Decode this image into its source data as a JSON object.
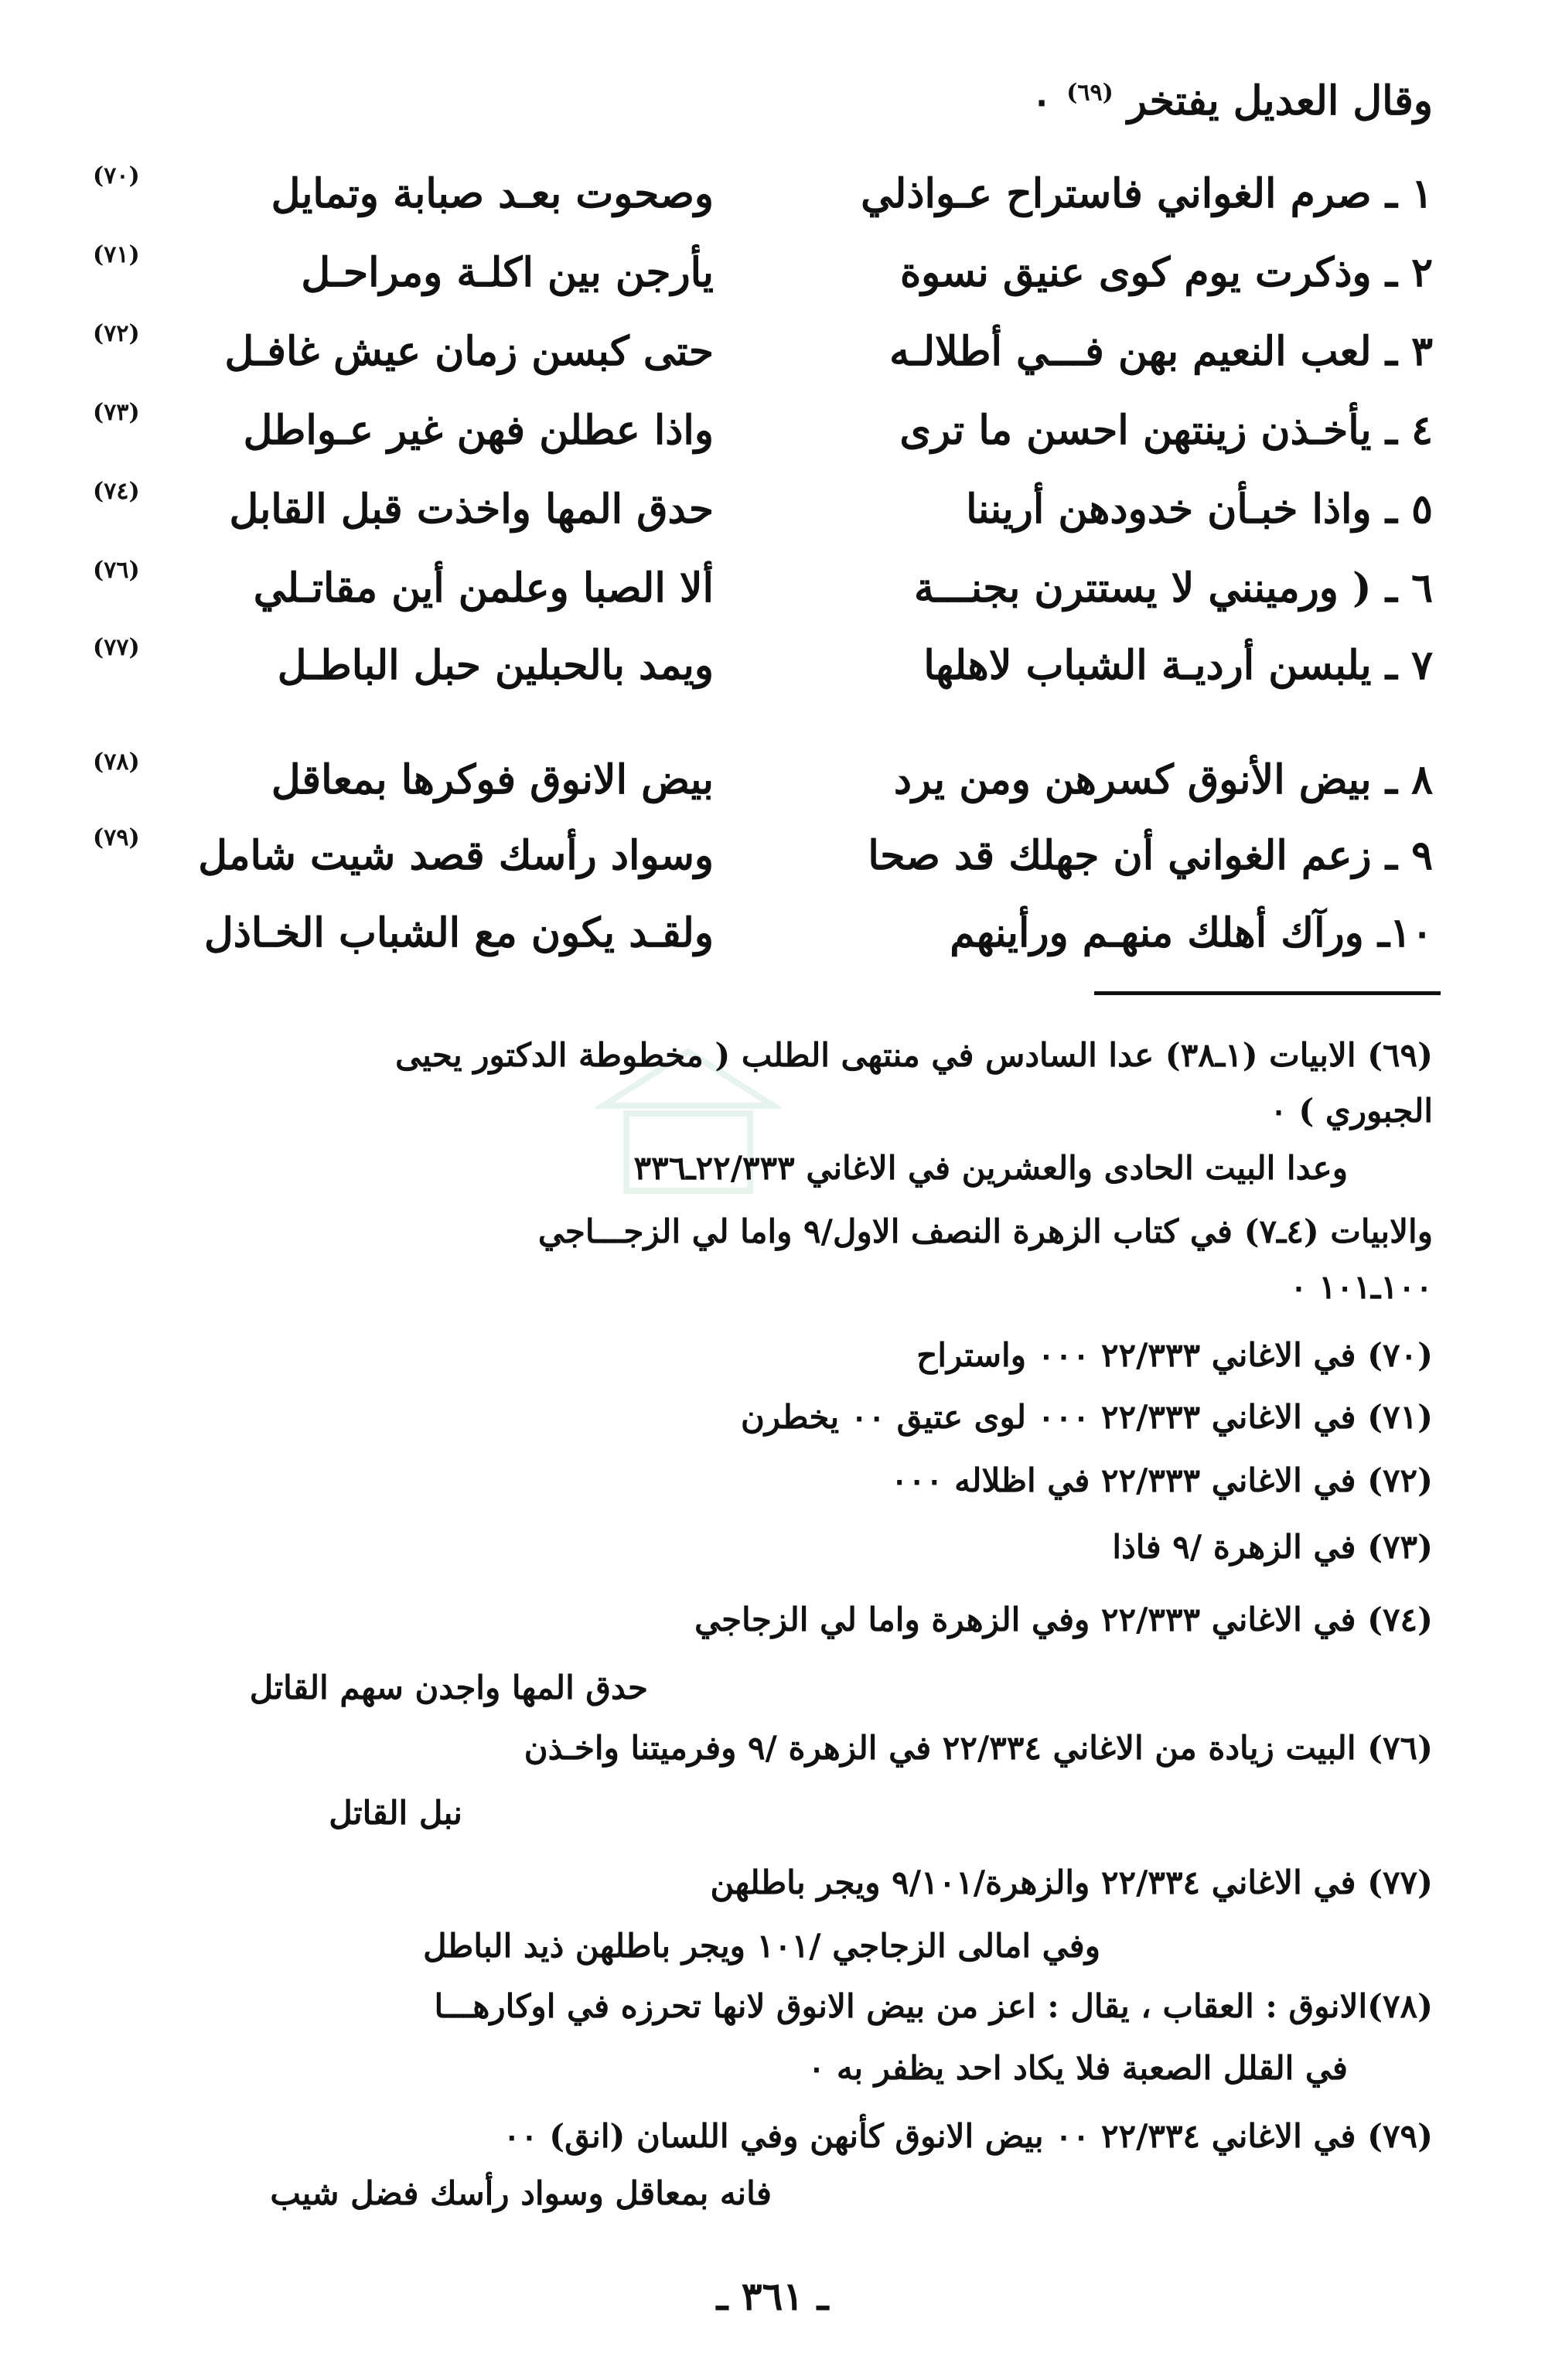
{
  "intro": {
    "text": "وقال العديل يفتخر",
    "note_ref": "(٦٩)",
    "end": "٠"
  },
  "verses": [
    {
      "first": "١ ـ صرم الغواني فاستراح عـواذلي",
      "second": "وصحوت بعـد صبابة وتمايل",
      "ref": "(٧٠)"
    },
    {
      "first": "٢ ـ وذكرت يوم كوى عنيق  نسوة",
      "second": "يأرجن بين اكلـة ومراحـل",
      "ref": "(٧١)"
    },
    {
      "first": "٣ ـ لعب النعيم  بهن فـــي أطلالـه",
      "second": "حتى كبسن زمان عيش غافـل",
      "ref": "(٧٢)"
    },
    {
      "first": "٤ ـ يأخـذن زينتهن احسن ما ترى",
      "second": "واذا عطلن فهن غير عـواطل",
      "ref": "(٧٣)"
    },
    {
      "first": "٥ ـ واذا خبـأن خدودهن أريننا",
      "second": "حدق المها واخذت قبل القابل",
      "ref": "(٧٤)"
    },
    {
      "first": "٦ ـ ( ورمينني  لا يستترن بجنـــة",
      "second": "ألا الصبا وعلمن أين مقاتـلي",
      "ref": "(٧٦)"
    },
    {
      "first": "٧ ـ يلبسن أرديـة الشباب لاهلها",
      "second": "ويمد بالحبلين حبل الباطـل",
      "ref": "(٧٧)"
    },
    {
      "first": "٨ ـ بيض الأنوق كسرهن ومن  يرد",
      "second": "بيض الانوق فوكرها بمعاقل",
      "ref": "(٧٨)"
    },
    {
      "first": "٩ ـ زعم الغواني أن جهلك قد  صحا",
      "second": "وسواد رأسك قصد شيت شامل",
      "ref": "(٧٩)"
    },
    {
      "first": "١٠ـ ورآك  أهلك  منهـم ورأينهم",
      "second": "ولقـد يكون مع الشباب  الخـاذل",
      "ref": ""
    }
  ],
  "footnotes": [
    "(٦٩) الابيات (١ـ٣٨) عدا السادس في منتهى الطلب ( مخطوطة الدكتور يحيى",
    "الجبوري ) ٠",
    "وعدا البيت الحادى والعشرين في الاغاني ٢٢/٣٣٣ـ٣٣٦",
    "والابيات (٤ـ٧) في كتاب الزهرة النصف الاول/٩ واما لي  الزجـــاجي",
    "١٠٠ـ١٠١ ٠",
    "(٧٠)      في الاغاني ٢٢/٣٣٣ ٠٠٠ واستراح",
    "(٧١)      في الاغاني ٢٢/٣٣٣ ٠٠٠ لوى عتيق ٠٠ يخطرن",
    "(٧٢)      في الاغاني ٢٢/٣٣٣            في اظلاله ٠٠٠",
    "(٧٣)      في الزهرة /٩               فاذا",
    "(٧٤)      في الاغاني ٢٢/٣٣٣ وفي الزهرة واما لي الزجاجي",
    "حدق المها واجدن سهم القاتل",
    "(٧٦)      البيت زيادة من الاغاني ٢٢/٣٣٤   في الزهرة /٩ وفرميتنا واخـذن",
    "نبل القاتل",
    "(٧٧)      في الاغاني ٢٢/٣٣٤ والزهرة/٩/١٠١ ويجر باطلهن",
    "وفي امالى الزجاجي /١٠١      ويجر باطلهن ذيد  الباطل",
    "(٧٨)الانوق : العقاب ، يقال : اعز من بيض الانوق لانها تحرزه في اوكارهـــا",
    "في القلل الصعبة فلا يكاد احد يظفر به ٠",
    "(٧٩)      في الاغاني ٢٢/٣٣٤ ٠٠ بيض الانوق كأنهن  وفي اللسان (انق) ٠٠",
    "فانه بمعاقل وسواد رأسك فضل شيب"
  ],
  "page_number": "ـ ٣٦١ ـ"
}
